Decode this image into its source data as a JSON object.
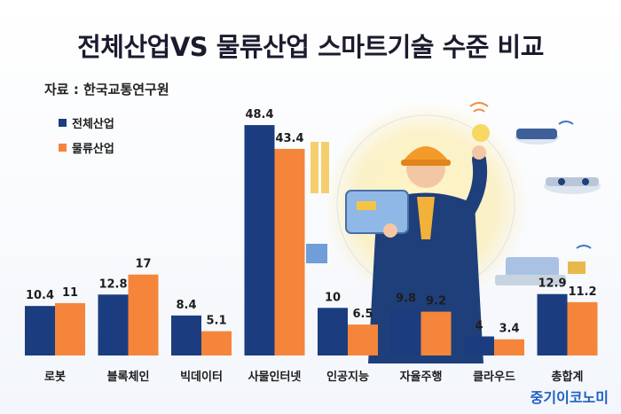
{
  "title": "전체산업VS 물류산업 스마트기술 수준 비교",
  "source": "자료 : 한국교통연구원",
  "watermark": "중기이코노미",
  "colors": {
    "series1": "#1b3d7f",
    "series2": "#f5853a"
  },
  "chart_data": {
    "type": "bar",
    "categories": [
      "로봇",
      "블록체인",
      "빅데이터",
      "사물인터넷",
      "인공지능",
      "자율주행",
      "클라우드",
      "총합계"
    ],
    "series": [
      {
        "name": "전체산업",
        "values": [
          10.4,
          12.8,
          8.4,
          48.4,
          10,
          9.8,
          4,
          12.9
        ]
      },
      {
        "name": "물류산업",
        "values": [
          11,
          17,
          5.1,
          43.4,
          6.5,
          9.2,
          3.4,
          11.2
        ]
      }
    ],
    "value_labels": [
      [
        "10.4",
        "12.8",
        "8.4",
        "48.4",
        "10",
        "9.8",
        "4",
        "12.9"
      ],
      [
        "11",
        "17",
        "5.1",
        "43.4",
        "6.5",
        "9.2",
        "3.4",
        "11.2"
      ]
    ],
    "title": "전체산업VS 물류산업 스마트기술 수준 비교",
    "legend": "top-left",
    "grid": false
  }
}
